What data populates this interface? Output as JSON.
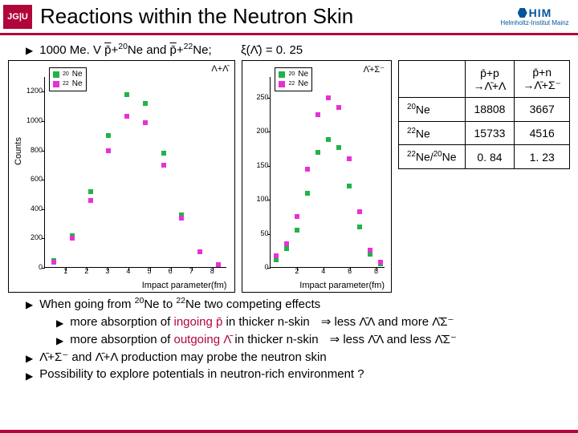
{
  "colors": {
    "accent": "#b1063a",
    "him": "#03559d",
    "series20": "#22b24c",
    "series22": "#e531d6",
    "tableBorder": "#000000"
  },
  "header": {
    "jgu": "JG|U",
    "title": "Reactions within the Neutron Skin",
    "him_big": "HIM",
    "him_small": "Helmholtz-Institut Mainz"
  },
  "line1": {
    "pre": "1000 Me. V ",
    "pbar": "p̄",
    "plus1": "+",
    "ne20sup": "20",
    "ne20": "Ne and ",
    "pbar2": "p̄",
    "plus2": "+",
    "ne22sup": "22",
    "ne22": "Ne;",
    "xi": "ξ(Λ̄) = 0. 25"
  },
  "chart": {
    "y_label_left": "Counts",
    "x_label_left": "Impact parameter(fm)",
    "x_label_right": "Impact parameter(fm)",
    "top_right_left": "Λ+Λ̄",
    "top_right_right": "Λ̄+Σ⁻",
    "legend": {
      "a_sup": "20",
      "a": "Ne",
      "b_sup": "22",
      "b": "Ne"
    },
    "left": {
      "x_ticks": [
        "1",
        "2",
        "3",
        "4",
        "5",
        "6",
        "7",
        "8"
      ],
      "y_ticks": [
        "0",
        "200",
        "400",
        "600",
        "800",
        "1000",
        "1200"
      ],
      "series20": [
        50,
        220,
        520,
        900,
        1180,
        1120,
        780,
        360,
        110,
        20
      ],
      "series22": [
        40,
        200,
        460,
        800,
        1030,
        990,
        700,
        340,
        110,
        20
      ]
    },
    "right": {
      "x_ticks": [
        "2",
        "4",
        "6",
        "8"
      ],
      "y_ticks": [
        "0",
        "50",
        "100",
        "150",
        "200",
        "250"
      ],
      "series22": [
        18,
        35,
        75,
        145,
        225,
        250,
        235,
        160,
        82,
        26,
        8
      ],
      "series20": [
        12,
        28,
        55,
        110,
        170,
        188,
        176,
        120,
        60,
        20,
        6
      ]
    }
  },
  "table": {
    "col1_top": "p̄+p",
    "col1_bot": "→Λ̄+Λ",
    "col2_top": "p̄+n",
    "col2_bot": "→Λ̄+Σ⁻",
    "rows": [
      {
        "label_sup": "20",
        "label": "Ne",
        "c1": "18808",
        "c2": "3667"
      },
      {
        "label_sup": "22",
        "label": "Ne",
        "c1": "15733",
        "c2": "4516"
      },
      {
        "label_sup": "22",
        "label_mid": "Ne/",
        "label2_sup": "20",
        "label2": "Ne",
        "c1": "0. 84",
        "c2": "1. 23"
      }
    ]
  },
  "bottom": {
    "b1": "When going from ",
    "b1_sup1": "20",
    "b1_m": "Ne to ",
    "b1_sup2": "22",
    "b1_end": "Ne two competing effects",
    "s1a": "more absorption of ",
    "s1b": "ingoing p̄",
    "s1c": " in thicker n-skin",
    "s1d": "⇒ less Λ̄Λ and more Λ̄Σ⁻",
    "s2a": "more absorption of ",
    "s2b": "outgoing Λ̄",
    "s2c": " in thicker n-skin",
    "s2d": "⇒ less Λ̄Λ and less Λ̄Σ⁻",
    "b3": "Λ̄+Σ⁻ and Λ̄+Λ production may probe the neutron skin",
    "b4": "Possibility to explore potentials in neutron-rich environment ?"
  }
}
